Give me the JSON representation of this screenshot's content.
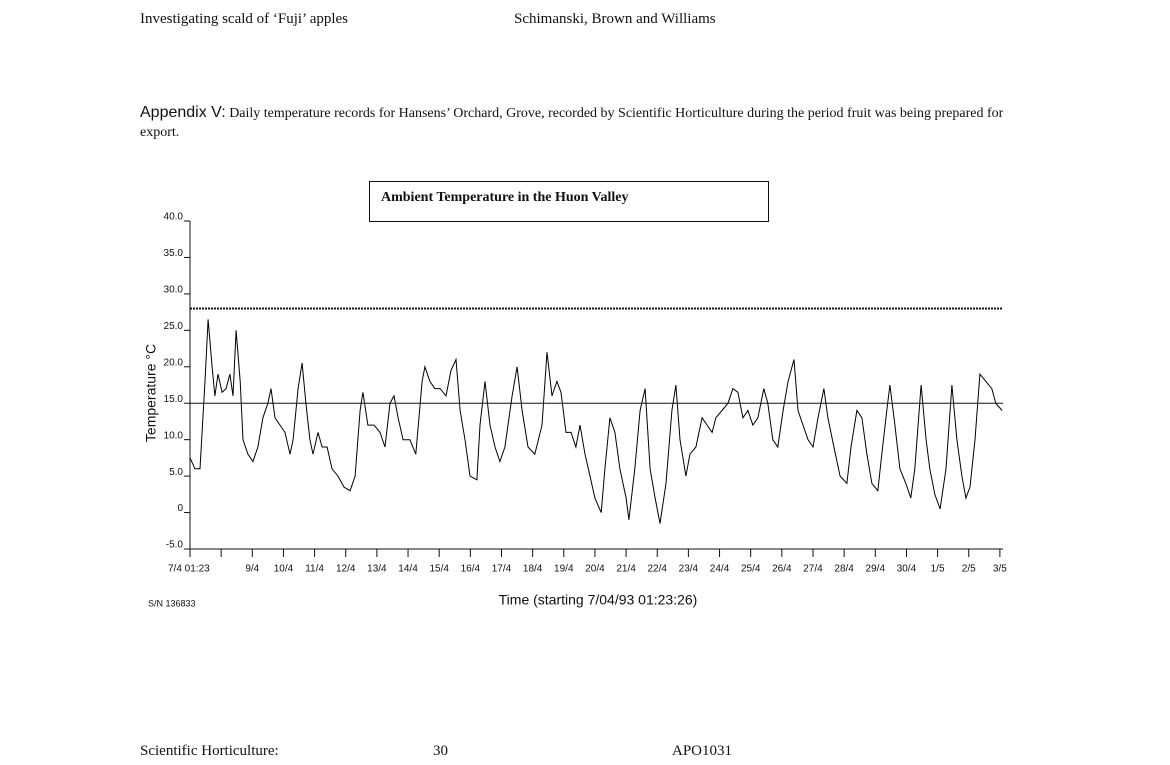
{
  "header": {
    "left": "Investigating scald of ‘Fuji’ apples",
    "right": "Schimanski, Brown and Williams"
  },
  "appendix": {
    "label": "Appendix V:",
    "text": "Daily temperature records for Hansens’ Orchard, Grove, recorded by Scientific Horticulture during the period fruit was being prepared for export."
  },
  "chart_data": {
    "type": "line",
    "title": "Ambient Temperature in the Huon Valley",
    "ylabel": "Temperature °C",
    "xlabel": "Time (starting 7/04/93 01:23:26)",
    "note": "S/N 136833",
    "color": "#000000",
    "x": [
      0,
      0.16,
      0.32,
      0.48,
      0.58,
      0.71,
      0.8,
      0.9,
      1.03,
      1.16,
      1.28,
      1.38,
      1.48,
      1.61,
      1.7,
      1.86,
      2.02,
      2.18,
      2.34,
      2.5,
      2.6,
      2.73,
      2.89,
      3.05,
      3.21,
      3.31,
      3.47,
      3.6,
      3.72,
      3.85,
      3.95,
      4.11,
      4.24,
      4.4,
      4.56,
      4.75,
      4.94,
      5.14,
      5.3,
      5.46,
      5.55,
      5.71,
      5.91,
      6.1,
      6.26,
      6.42,
      6.55,
      6.68,
      6.84,
      7.06,
      7.25,
      7.45,
      7.54,
      7.7,
      7.86,
      8.03,
      8.22,
      8.38,
      8.54,
      8.67,
      8.83,
      8.99,
      9.21,
      9.31,
      9.47,
      9.63,
      9.79,
      9.95,
      10.11,
      10.34,
      10.5,
      10.66,
      10.85,
      11.07,
      11.3,
      11.46,
      11.62,
      11.78,
      11.91,
      12.07,
      12.23,
      12.39,
      12.52,
      12.68,
      12.84,
      13.0,
      13.2,
      13.32,
      13.48,
      13.64,
      13.8,
      14.0,
      14.09,
      14.28,
      14.45,
      14.61,
      14.77,
      14.93,
      15.09,
      15.28,
      15.47,
      15.6,
      15.73,
      15.92,
      16.05,
      16.24,
      16.44,
      16.6,
      16.76,
      16.88,
      17.08,
      17.27,
      17.43,
      17.59,
      17.75,
      17.91,
      18.07,
      18.23,
      18.42,
      18.55,
      18.71,
      18.87,
      19.04,
      19.2,
      19.39,
      19.52,
      19.68,
      19.84,
      20.0,
      20.16,
      20.35,
      20.48,
      20.67,
      20.87,
      21.09,
      21.22,
      21.41,
      21.57,
      21.73,
      21.89,
      22.08,
      22.21,
      22.37,
      22.47,
      22.63,
      22.79,
      22.98,
      23.14,
      23.27,
      23.47,
      23.63,
      23.75,
      23.91,
      24.08,
      24.27,
      24.46,
      24.62,
      24.78,
      24.91,
      25.04,
      25.2,
      25.36,
      25.55,
      25.74,
      25.87,
      26.07
    ],
    "values": [
      7.5,
      6,
      6,
      18,
      26.5,
      20,
      16,
      19,
      16.5,
      17,
      19,
      16,
      25,
      18,
      10,
      8,
      7,
      9,
      13,
      15,
      17,
      13,
      12,
      11,
      8,
      10,
      17,
      20.5,
      15,
      10,
      8,
      11,
      9,
      9,
      6,
      5,
      3.5,
      3,
      5,
      14,
      16.5,
      12,
      12,
      11,
      9,
      15,
      16,
      13,
      10,
      10,
      8,
      18,
      20,
      18,
      17,
      17,
      16,
      19.5,
      21,
      14,
      10,
      5,
      4.5,
      12,
      18,
      12,
      9,
      7,
      9,
      16,
      20,
      14,
      9,
      8,
      12,
      22,
      16,
      18,
      16.5,
      11,
      11,
      9,
      12,
      8,
      5,
      2,
      0,
      6,
      13,
      11,
      6,
      2,
      -1,
      6,
      14,
      17,
      6,
      2,
      -1.5,
      4,
      14,
      17.5,
      10,
      5,
      8,
      9,
      13,
      12,
      11,
      13,
      14,
      15,
      17,
      16.5,
      13,
      14,
      12,
      13,
      17,
      15,
      10,
      9,
      14,
      18,
      21,
      14,
      12,
      10,
      9,
      13,
      17,
      13,
      9,
      5,
      4,
      9,
      14,
      13,
      8,
      4,
      3,
      8,
      14,
      17.5,
      12,
      6,
      4,
      2,
      6,
      17.5,
      10,
      6,
      2.5,
      0.5,
      6,
      17.5,
      10,
      5,
      2,
      3.5,
      10,
      19,
      18,
      17,
      15,
      14
    ],
    "xlim": [
      0,
      26.1
    ],
    "xticks": [
      {
        "value": 0,
        "label": "7/4 01:23"
      },
      {
        "value": 1,
        "label": null
      },
      {
        "value": 2,
        "label": "9/4"
      },
      {
        "value": 3,
        "label": "10/4"
      },
      {
        "value": 4,
        "label": "11/4"
      },
      {
        "value": 5,
        "label": "12/4"
      },
      {
        "value": 6,
        "label": "13/4"
      },
      {
        "value": 7,
        "label": "14/4"
      },
      {
        "value": 8,
        "label": "15/4"
      },
      {
        "value": 9,
        "label": "16/4"
      },
      {
        "value": 10,
        "label": "17/4"
      },
      {
        "value": 11,
        "label": "18/4"
      },
      {
        "value": 12,
        "label": "19/4"
      },
      {
        "value": 13,
        "label": "20/4"
      },
      {
        "value": 14,
        "label": "21/4"
      },
      {
        "value": 15,
        "label": "22/4"
      },
      {
        "value": 16,
        "label": "23/4"
      },
      {
        "value": 17,
        "label": "24/4"
      },
      {
        "value": 18,
        "label": "25/4"
      },
      {
        "value": 19,
        "label": "26/4"
      },
      {
        "value": 20,
        "label": "27/4"
      },
      {
        "value": 21,
        "label": "28/4"
      },
      {
        "value": 22,
        "label": "29/4"
      },
      {
        "value": 23,
        "label": "30/4"
      },
      {
        "value": 24,
        "label": "1/5"
      },
      {
        "value": 25,
        "label": "2/5"
      },
      {
        "value": 26,
        "label": "3/5"
      }
    ],
    "ylim": [
      -5,
      40
    ],
    "yticks": [
      {
        "value": 40,
        "label": "40.0"
      },
      {
        "value": 35,
        "label": "35.0"
      },
      {
        "value": 30,
        "label": "30.0"
      },
      {
        "value": 25,
        "label": "25.0"
      },
      {
        "value": 20,
        "label": "20.0"
      },
      {
        "value": 15,
        "label": "15.0"
      },
      {
        "value": 10,
        "label": "10.0"
      },
      {
        "value": 5,
        "label": "5.0"
      },
      0,
      {
        "value": -5,
        "label": "-5.0"
      }
    ],
    "hlines": [
      {
        "value": 28,
        "style": "dashed"
      },
      {
        "value": 15,
        "style": "solid"
      }
    ]
  },
  "footer": {
    "left": "Scientific Horticulture:",
    "page": "30",
    "code": "APO1031"
  }
}
